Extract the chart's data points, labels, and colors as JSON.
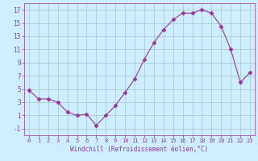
{
  "x": [
    0,
    1,
    2,
    3,
    4,
    5,
    6,
    7,
    8,
    9,
    10,
    11,
    12,
    13,
    14,
    15,
    16,
    17,
    18,
    19,
    20,
    21,
    22,
    23
  ],
  "y": [
    4.8,
    3.5,
    3.5,
    3.0,
    1.5,
    1.0,
    1.2,
    -0.5,
    1.0,
    2.5,
    4.5,
    6.5,
    9.5,
    12.0,
    14.0,
    15.5,
    16.5,
    16.5,
    17.0,
    16.5,
    14.5,
    11.0,
    6.0,
    7.5
  ],
  "line_color": "#993399",
  "marker": "D",
  "marker_size": 2.5,
  "bg_color": "#cceeff",
  "grid_color": "#aacccc",
  "xlabel": "Windchill (Refroidissement éolien,°C)",
  "xlabel_color": "#993399",
  "tick_color": "#993399",
  "ylim": [
    -2,
    18
  ],
  "xlim": [
    -0.5,
    23.5
  ],
  "yticks": [
    -1,
    1,
    3,
    5,
    7,
    9,
    11,
    13,
    15,
    17
  ],
  "xticks": [
    0,
    1,
    2,
    3,
    4,
    5,
    6,
    7,
    8,
    9,
    10,
    11,
    12,
    13,
    14,
    15,
    16,
    17,
    18,
    19,
    20,
    21,
    22,
    23
  ]
}
